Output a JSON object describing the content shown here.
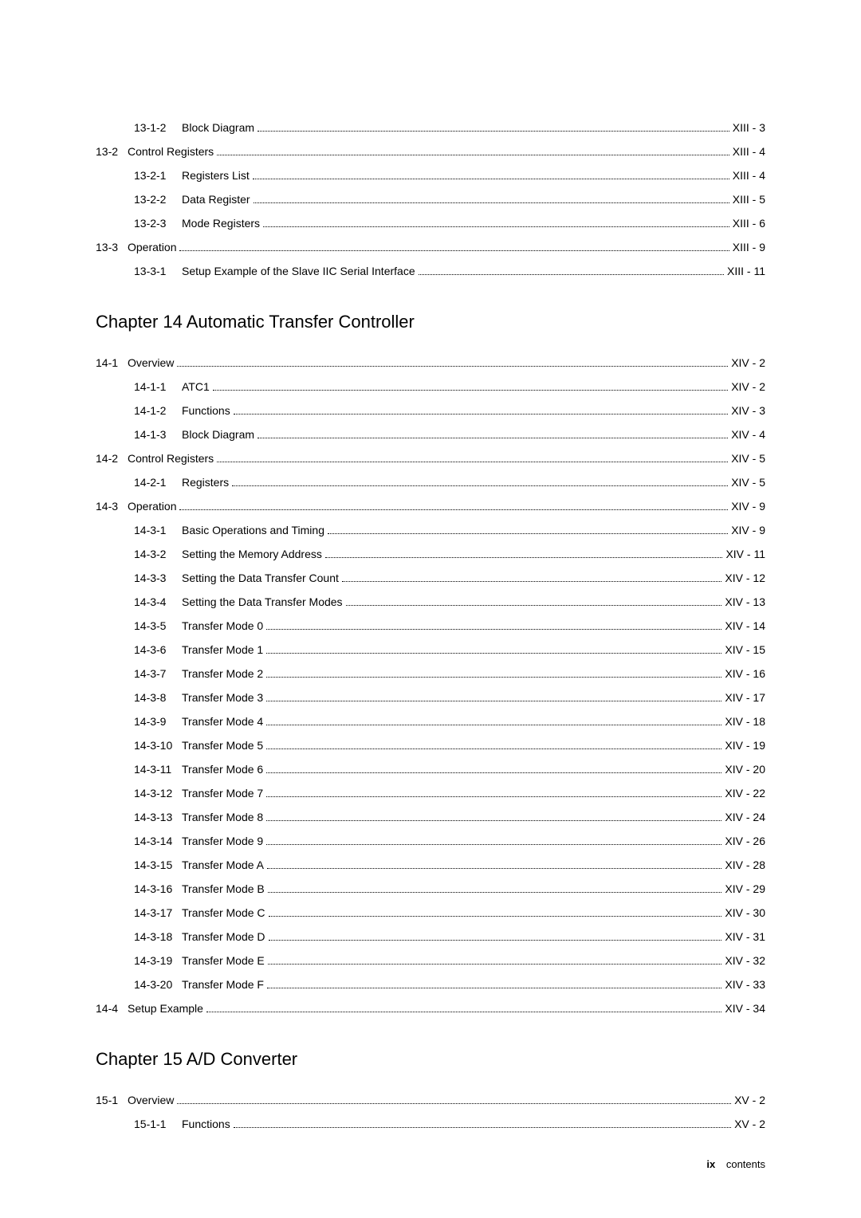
{
  "preChapter": [
    {
      "type": "sub",
      "num": "13-1-2",
      "title": "Block Diagram",
      "page": "XIII - 3"
    },
    {
      "type": "sec",
      "num": "13-2",
      "title": "Control Registers",
      "page": "XIII - 4"
    },
    {
      "type": "sub",
      "num": "13-2-1",
      "title": "Registers List",
      "page": "XIII - 4"
    },
    {
      "type": "sub",
      "num": "13-2-2",
      "title": "Data Register",
      "page": "XIII - 5"
    },
    {
      "type": "sub",
      "num": "13-2-3",
      "title": "Mode Registers",
      "page": "XIII - 6"
    },
    {
      "type": "sec",
      "num": "13-3",
      "title": "Operation",
      "page": "XIII - 9"
    },
    {
      "type": "sub",
      "num": "13-3-1",
      "title": "Setup Example of the Slave IIC Serial Interface",
      "page": "XIII - 11"
    }
  ],
  "chapter14": {
    "heading": "Chapter 14   Automatic Transfer Controller",
    "entries": [
      {
        "type": "sec",
        "num": "14-1",
        "title": "Overview",
        "page": "XIV - 2"
      },
      {
        "type": "sub",
        "num": "14-1-1",
        "title": "ATC1",
        "page": "XIV - 2"
      },
      {
        "type": "sub",
        "num": "14-1-2",
        "title": "Functions",
        "page": "XIV - 3"
      },
      {
        "type": "sub",
        "num": "14-1-3",
        "title": "Block Diagram",
        "page": "XIV - 4"
      },
      {
        "type": "sec",
        "num": "14-2",
        "title": "Control Registers",
        "page": "XIV - 5"
      },
      {
        "type": "sub",
        "num": "14-2-1",
        "title": "Registers",
        "page": "XIV - 5"
      },
      {
        "type": "sec",
        "num": "14-3",
        "title": "Operation",
        "page": "XIV - 9"
      },
      {
        "type": "sub",
        "num": "14-3-1",
        "title": "Basic Operations and Timing",
        "page": "XIV - 9"
      },
      {
        "type": "sub",
        "num": "14-3-2",
        "title": "Setting the Memory Address",
        "page": "XIV - 11"
      },
      {
        "type": "sub",
        "num": "14-3-3",
        "title": "Setting the Data Transfer Count",
        "page": "XIV - 12"
      },
      {
        "type": "sub",
        "num": "14-3-4",
        "title": "Setting the Data Transfer Modes",
        "page": "XIV - 13"
      },
      {
        "type": "sub",
        "num": "14-3-5",
        "title": "Transfer Mode 0",
        "page": "XIV - 14"
      },
      {
        "type": "sub",
        "num": "14-3-6",
        "title": "Transfer Mode 1",
        "page": "XIV - 15"
      },
      {
        "type": "sub",
        "num": "14-3-7",
        "title": "Transfer Mode 2",
        "page": "XIV - 16"
      },
      {
        "type": "sub",
        "num": "14-3-8",
        "title": "Transfer Mode 3",
        "page": "XIV - 17"
      },
      {
        "type": "sub",
        "num": "14-3-9",
        "title": "Transfer Mode 4",
        "page": "XIV - 18"
      },
      {
        "type": "sub",
        "num": "14-3-10",
        "title": "Transfer Mode 5",
        "page": "XIV - 19"
      },
      {
        "type": "sub",
        "num": "14-3-11",
        "title": "Transfer Mode 6",
        "page": "XIV - 20"
      },
      {
        "type": "sub",
        "num": "14-3-12",
        "title": "Transfer Mode 7",
        "page": "XIV - 22"
      },
      {
        "type": "sub",
        "num": "14-3-13",
        "title": "Transfer Mode 8",
        "page": "XIV - 24"
      },
      {
        "type": "sub",
        "num": "14-3-14",
        "title": "Transfer Mode 9",
        "page": "XIV - 26"
      },
      {
        "type": "sub",
        "num": "14-3-15",
        "title": "Transfer Mode A",
        "page": "XIV - 28"
      },
      {
        "type": "sub",
        "num": "14-3-16",
        "title": "Transfer Mode B",
        "page": "XIV - 29"
      },
      {
        "type": "sub",
        "num": "14-3-17",
        "title": "Transfer Mode C",
        "page": "XIV - 30"
      },
      {
        "type": "sub",
        "num": "14-3-18",
        "title": "Transfer Mode D",
        "page": "XIV - 31"
      },
      {
        "type": "sub",
        "num": "14-3-19",
        "title": "Transfer Mode E",
        "page": "XIV - 32"
      },
      {
        "type": "sub",
        "num": "14-3-20",
        "title": "Transfer Mode F",
        "page": "XIV - 33"
      },
      {
        "type": "sec",
        "num": "14-4",
        "title": "Setup Example",
        "page": "XIV - 34"
      }
    ]
  },
  "chapter15": {
    "heading": "Chapter 15   A/D Converter",
    "entries": [
      {
        "type": "sec",
        "num": "15-1",
        "title": "Overview",
        "page": "XV - 2"
      },
      {
        "type": "sub",
        "num": "15-1-1",
        "title": "Functions",
        "page": "XV - 2"
      }
    ]
  },
  "footer": {
    "pageNum": "ix",
    "label": "contents"
  },
  "styles": {
    "background": "#ffffff",
    "text_color": "#000000",
    "font_size_body": 14,
    "font_size_heading": 22,
    "font_size_footer": 13
  }
}
